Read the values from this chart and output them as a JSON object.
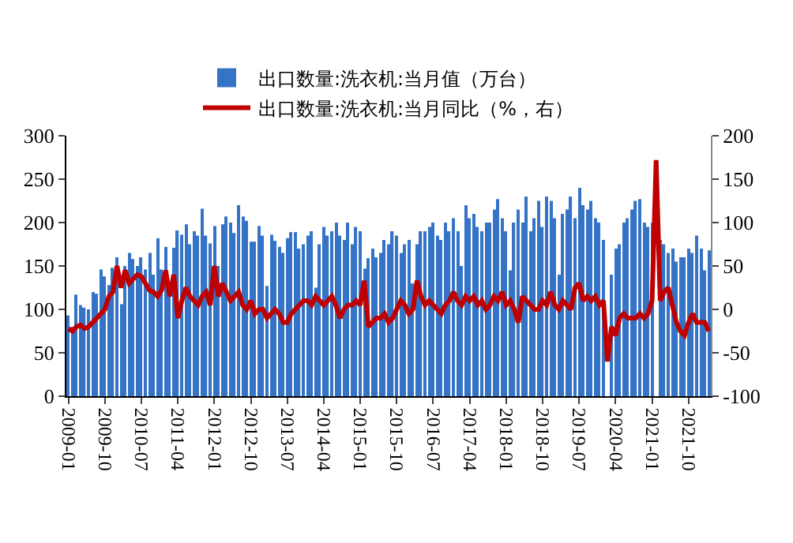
{
  "chart_data": {
    "type": "bar",
    "categories": [
      "2009-01",
      null,
      null,
      null,
      null,
      null,
      null,
      null,
      null,
      "2009-10",
      null,
      null,
      null,
      null,
      null,
      null,
      null,
      null,
      "2010-07",
      null,
      null,
      null,
      null,
      null,
      null,
      null,
      null,
      "2011-04",
      null,
      null,
      null,
      null,
      null,
      null,
      null,
      null,
      "2012-01",
      null,
      null,
      null,
      null,
      null,
      null,
      null,
      null,
      "2012-10",
      null,
      null,
      null,
      null,
      null,
      null,
      null,
      null,
      "2013-07",
      null,
      null,
      null,
      null,
      null,
      null,
      null,
      null,
      "2014-04",
      null,
      null,
      null,
      null,
      null,
      null,
      null,
      null,
      "2015-01",
      null,
      null,
      null,
      null,
      null,
      null,
      null,
      null,
      "2015-10",
      null,
      null,
      null,
      null,
      null,
      null,
      null,
      null,
      "2016-07",
      null,
      null,
      null,
      null,
      null,
      null,
      null,
      null,
      "2017-04",
      null,
      null,
      null,
      null,
      null,
      null,
      null,
      null,
      "2018-01",
      null,
      null,
      null,
      null,
      null,
      null,
      null,
      null,
      "2018-10",
      null,
      null,
      null,
      null,
      null,
      null,
      null,
      null,
      "2019-07",
      null,
      null,
      null,
      null,
      null,
      null,
      null,
      null,
      "2020-04",
      null,
      null,
      null,
      null,
      null,
      null,
      null,
      null,
      "2021-01",
      null,
      null,
      null,
      null,
      null,
      null,
      null,
      null,
      "2021-10",
      null,
      null,
      null,
      null,
      null
    ],
    "series": [
      {
        "name": "出口数量:洗衣机:当月值（万台）",
        "color": "#3473c6",
        "values": [
          93,
          80,
          117,
          105,
          102,
          100,
          120,
          118,
          146,
          138,
          128,
          148,
          160,
          106,
          150,
          165,
          158,
          150,
          160,
          146,
          165,
          140,
          182,
          146,
          172,
          120,
          171,
          191,
          186,
          198,
          175,
          190,
          185,
          216,
          185,
          176,
          196,
          150,
          198,
          207,
          200,
          188,
          220,
          207,
          202,
          178,
          178,
          196,
          185,
          127,
          186,
          179,
          172,
          165,
          182,
          189,
          189,
          170,
          175,
          185,
          190,
          125,
          175,
          195,
          185,
          190,
          200,
          185,
          180,
          200,
          175,
          195,
          190,
          147,
          159,
          170,
          160,
          165,
          180,
          175,
          190,
          185,
          165,
          175,
          180,
          130,
          175,
          190,
          190,
          195,
          200,
          185,
          180,
          200,
          190,
          205,
          190,
          150,
          220,
          205,
          210,
          195,
          190,
          200,
          200,
          215,
          227,
          205,
          190,
          145,
          200,
          215,
          200,
          230,
          190,
          205,
          225,
          195,
          230,
          225,
          205,
          140,
          210,
          215,
          230,
          205,
          240,
          220,
          215,
          225,
          205,
          200,
          180,
          null,
          140,
          170,
          175,
          200,
          205,
          215,
          225,
          227,
          200,
          195,
          200,
          null,
          180,
          175,
          165,
          170,
          155,
          160,
          160,
          170,
          165,
          185,
          170,
          145,
          168
        ]
      },
      {
        "name": "出口数量:洗衣机:当月同比（%，右）",
        "type": "line",
        "axis": "y2",
        "color": "#c00000",
        "values": [
          -22,
          -25,
          -20,
          -18,
          -22,
          -20,
          -15,
          -10,
          -5,
          0,
          15,
          20,
          50,
          25,
          45,
          30,
          35,
          40,
          38,
          30,
          22,
          20,
          15,
          22,
          45,
          15,
          40,
          -10,
          10,
          25,
          15,
          10,
          5,
          15,
          20,
          5,
          50,
          15,
          30,
          20,
          10,
          15,
          20,
          5,
          0,
          10,
          -5,
          0,
          0,
          -10,
          -5,
          0,
          -5,
          -15,
          -15,
          -5,
          0,
          5,
          10,
          10,
          5,
          15,
          10,
          5,
          10,
          15,
          5,
          -10,
          0,
          5,
          5,
          10,
          5,
          33,
          -20,
          -15,
          -10,
          -10,
          -5,
          -15,
          -10,
          0,
          10,
          5,
          -5,
          0,
          33,
          15,
          5,
          10,
          5,
          0,
          -5,
          5,
          10,
          20,
          10,
          5,
          15,
          10,
          15,
          5,
          10,
          0,
          5,
          15,
          10,
          20,
          5,
          10,
          0,
          -15,
          15,
          10,
          5,
          0,
          0,
          10,
          5,
          20,
          5,
          0,
          10,
          5,
          0,
          25,
          30,
          10,
          15,
          10,
          15,
          5,
          10,
          -60,
          -20,
          -30,
          -10,
          -5,
          -10,
          -10,
          -10,
          -5,
          -10,
          -5,
          10,
          172,
          10,
          20,
          25,
          5,
          -15,
          -25,
          -30,
          -15,
          -5,
          -15,
          -15,
          -15,
          -25
        ]
      }
    ],
    "ylim": [
      0,
      300
    ],
    "yticks": [
      0,
      50,
      100,
      150,
      200,
      250,
      300
    ],
    "y2lim": [
      -100,
      200
    ],
    "y2ticks": [
      -100,
      -50,
      0,
      50,
      100,
      150,
      200
    ],
    "grid": false,
    "legend": "top"
  }
}
